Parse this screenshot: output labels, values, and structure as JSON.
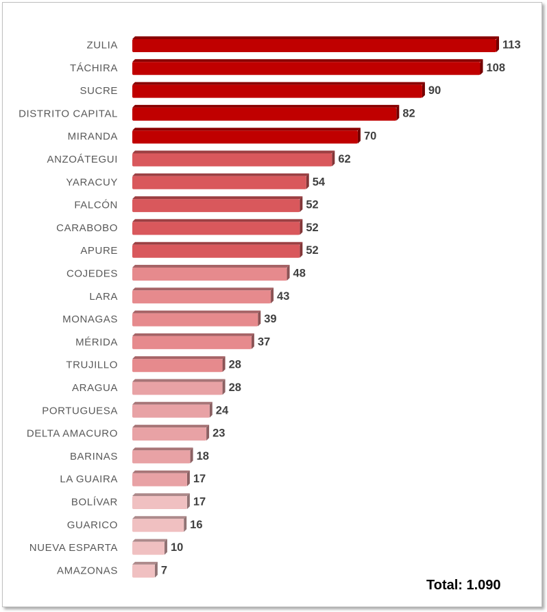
{
  "chart_data": {
    "type": "bar",
    "orientation": "horizontal",
    "categories": [
      "ZULIA",
      "TÁCHIRA",
      "SUCRE",
      "DISTRITO CAPITAL",
      "MIRANDA",
      "ANZOÁTEGUI",
      "YARACUY",
      "FALCÓN",
      "CARABOBO",
      "APURE",
      "COJEDES",
      "LARA",
      "MONAGAS",
      "MÉRIDA",
      "TRUJILLO",
      "ARAGUA",
      "PORTUGUESA",
      "DELTA AMACURO",
      "BARINAS",
      "LA GUAIRA",
      "BOLÍVAR",
      "GUARICO",
      "NUEVA ESPARTA",
      "AMAZONAS"
    ],
    "values": [
      113,
      108,
      90,
      82,
      70,
      62,
      54,
      52,
      52,
      52,
      48,
      43,
      39,
      37,
      28,
      28,
      24,
      23,
      18,
      17,
      17,
      16,
      10,
      7
    ],
    "bar_colors": [
      "#c00000",
      "#c00000",
      "#c00000",
      "#c00000",
      "#c00000",
      "#d9585c",
      "#d9585c",
      "#d9585c",
      "#d9585c",
      "#d9585c",
      "#e68a8d",
      "#e68a8d",
      "#e68a8d",
      "#e68a8d",
      "#e68a8d",
      "#e8a2a5",
      "#e8a2a5",
      "#e8a2a5",
      "#e8a2a5",
      "#e8a2a5",
      "#f0c0c1",
      "#f0c0c1",
      "#f0c0c1",
      "#f0c0c1"
    ],
    "title": "",
    "xlabel": "",
    "ylabel": "",
    "xlim": [
      0,
      113
    ],
    "grid": false,
    "data_labels": true
  },
  "total_label": "Total: 1.090"
}
